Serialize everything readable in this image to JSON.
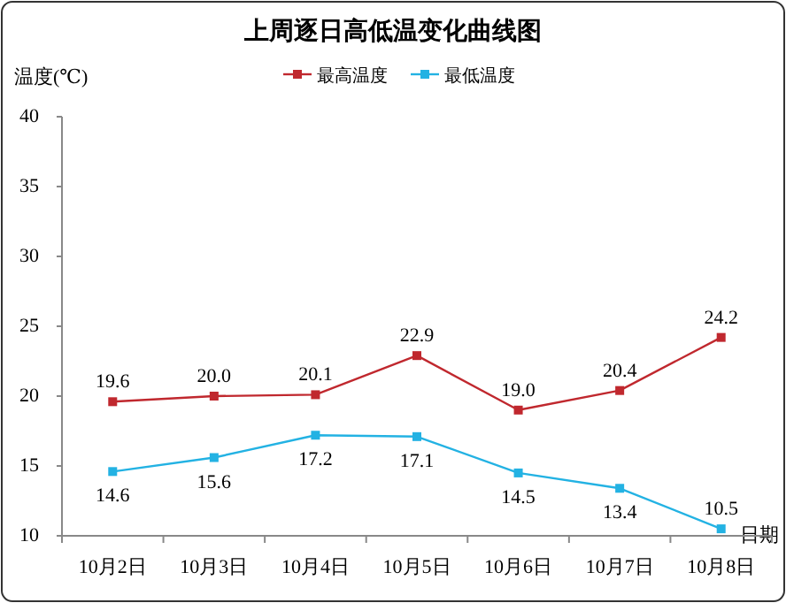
{
  "chart_data": {
    "type": "line",
    "title": "上周逐日高低温变化曲线图",
    "ylabel": "温度(℃)",
    "xlabel": "日期",
    "categories": [
      "10月2日",
      "10月3日",
      "10月4日",
      "10月5日",
      "10月6日",
      "10月7日",
      "10月8日"
    ],
    "series": [
      {
        "name": "最高温度",
        "color": "#c0282e",
        "values": [
          19.6,
          20.0,
          20.1,
          22.9,
          19.0,
          20.4,
          24.2
        ],
        "value_labels": [
          "19.6",
          "20.0",
          "20.1",
          "22.9",
          "19.0",
          "20.4",
          "24.2"
        ]
      },
      {
        "name": "最低温度",
        "color": "#23b2e3",
        "values": [
          14.6,
          15.6,
          17.2,
          17.1,
          14.5,
          13.4,
          10.5
        ]
      }
    ],
    "ylim": [
      10,
      40
    ],
    "yticks": [
      10,
      15,
      20,
      25,
      30,
      35,
      40
    ],
    "grid": false,
    "legend": "top",
    "marker": "square",
    "line_style": "solid",
    "data_labels": true
  }
}
